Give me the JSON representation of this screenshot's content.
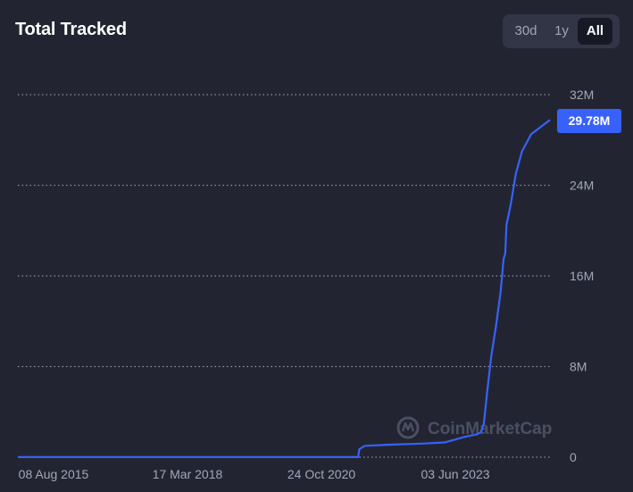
{
  "header": {
    "title": "Total Tracked",
    "ranges": [
      "30d",
      "1y",
      "All"
    ],
    "active_range": "All"
  },
  "watermark": {
    "text": "CoinMarketCap",
    "icon": "coinmarketcap-logo-icon"
  },
  "colors": {
    "line": "#3861fb",
    "background": "#222531",
    "accent": "#3861fb"
  },
  "chart_data": {
    "type": "line",
    "title": "Total Tracked",
    "xlabel": "",
    "ylabel": "",
    "x_tick_labels": [
      "08 Aug 2015",
      "17 Mar 2018",
      "24 Oct 2020",
      "03 Jun 2023"
    ],
    "y_tick_labels": [
      "0",
      "8M",
      "16M",
      "24M",
      "32M"
    ],
    "ylim": [
      0,
      32000000
    ],
    "xlim": [
      "2015-08-08",
      "2025-05-07"
    ],
    "grid": true,
    "last_value_label": "29.78M",
    "series": [
      {
        "name": "",
        "points": [
          [
            "2015-08-08",
            0.01
          ],
          [
            "2017-01-01",
            0.01
          ],
          [
            "2019-01-01",
            0.01
          ],
          [
            "2021-01-01",
            0.01
          ],
          [
            "2021-11-01",
            0.01
          ],
          [
            "2021-11-08",
            0.7
          ],
          [
            "2021-12-15",
            1.0
          ],
          [
            "2022-06-01",
            1.1
          ],
          [
            "2023-01-01",
            1.2
          ],
          [
            "2023-06-03",
            1.3
          ],
          [
            "2023-10-15",
            1.8
          ],
          [
            "2024-01-01",
            2.0
          ],
          [
            "2024-02-01",
            2.2
          ],
          [
            "2024-02-20",
            3.0
          ],
          [
            "2024-03-15",
            6.0
          ],
          [
            "2024-04-10",
            9.0
          ],
          [
            "2024-05-10",
            11.5
          ],
          [
            "2024-06-10",
            14.5
          ],
          [
            "2024-07-01",
            17.5
          ],
          [
            "2024-07-12",
            18.0
          ],
          [
            "2024-07-20",
            20.5
          ],
          [
            "2024-08-05",
            21.5
          ],
          [
            "2024-08-20",
            22.5
          ],
          [
            "2024-09-20",
            25.0
          ],
          [
            "2024-11-01",
            27.0
          ],
          [
            "2025-01-01",
            28.5
          ],
          [
            "2025-05-07",
            29.78
          ]
        ]
      }
    ]
  }
}
